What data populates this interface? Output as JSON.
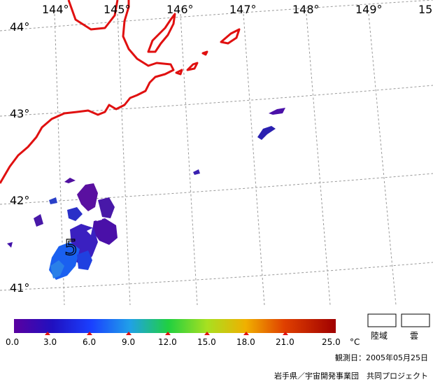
{
  "map": {
    "longitude_labels": [
      "144°",
      "145°",
      "146°",
      "147°",
      "148°",
      "149°",
      "15"
    ],
    "latitude_labels": [
      "44°",
      "43°",
      "42°",
      "41°"
    ],
    "contour_label": "5"
  },
  "colorbar": {
    "ticks": [
      "0.0",
      "3.0",
      "6.0",
      "9.0",
      "12.0",
      "15.0",
      "18.0",
      "21.0",
      "25.0"
    ],
    "unit": "°C",
    "colors": [
      "#5a00a0",
      "#1a10c8",
      "#1a5aff",
      "#20b0e0",
      "#20d040",
      "#c8e020",
      "#f0a000",
      "#e04000",
      "#a00000"
    ]
  },
  "legend": {
    "land_label": "陸域",
    "cloud_label": "雲"
  },
  "observation_date": "観測日：2005年05月25日",
  "credit": "岩手県／宇宙開発事業団　共同プロジェクト"
}
